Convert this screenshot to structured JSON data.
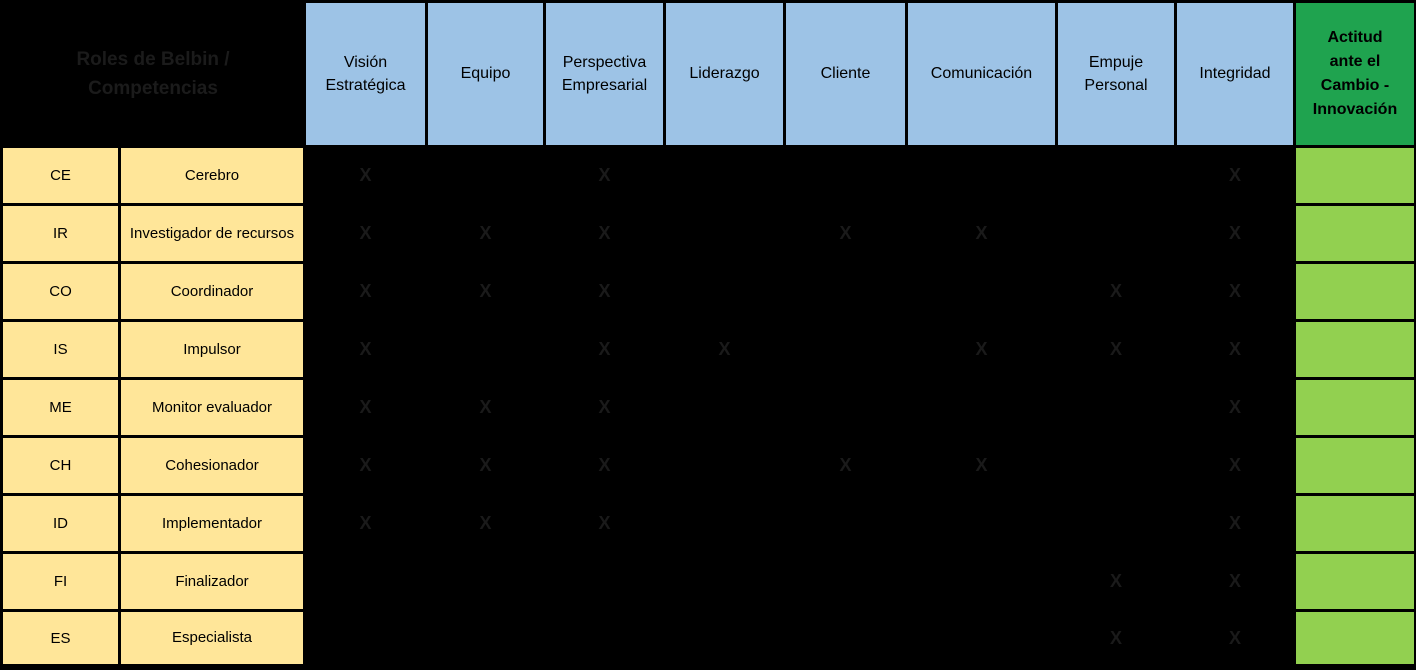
{
  "table": {
    "title": "Roles de Belbin / Competencias",
    "mark_symbol": "X",
    "columns": [
      {
        "label": "Visión Estratégica",
        "style": "blue"
      },
      {
        "label": "Equipo",
        "style": "blue"
      },
      {
        "label": "Perspectiva Empresarial",
        "style": "blue"
      },
      {
        "label": "Liderazgo",
        "style": "blue"
      },
      {
        "label": "Cliente",
        "style": "blue"
      },
      {
        "label": "Comunicación",
        "style": "blue"
      },
      {
        "label": "Empuje Personal",
        "style": "blue"
      },
      {
        "label": "Integridad",
        "style": "blue"
      },
      {
        "label": "Actitud ante el Cambio - Innovación",
        "style": "green"
      }
    ],
    "rows": [
      {
        "code": "CE",
        "role": "Cerebro",
        "marks": [
          "X",
          "",
          "X",
          "",
          "",
          "",
          "",
          "X",
          ""
        ]
      },
      {
        "code": "IR",
        "role": "Investigador de recursos",
        "marks": [
          "X",
          "X",
          "X",
          "",
          "X",
          "X",
          "",
          "X",
          ""
        ]
      },
      {
        "code": "CO",
        "role": "Coordinador",
        "marks": [
          "X",
          "X",
          "X",
          "",
          "",
          "",
          "X",
          "X",
          ""
        ]
      },
      {
        "code": "IS",
        "role": "Impulsor",
        "marks": [
          "X",
          "",
          "X",
          "X",
          "",
          "X",
          "X",
          "X",
          ""
        ]
      },
      {
        "code": "ME",
        "role": "Monitor evaluador",
        "marks": [
          "X",
          "X",
          "X",
          "",
          "",
          "",
          "",
          "X",
          ""
        ]
      },
      {
        "code": "CH",
        "role": "Cohesionador",
        "marks": [
          "X",
          "X",
          "X",
          "",
          "X",
          "X",
          "",
          "X",
          ""
        ]
      },
      {
        "code": "ID",
        "role": "Implementador",
        "marks": [
          "X",
          "X",
          "X",
          "",
          "",
          "",
          "",
          "X",
          ""
        ]
      },
      {
        "code": "FI",
        "role": "Finalizador",
        "marks": [
          "",
          "",
          "",
          "",
          "",
          "",
          "X",
          "X",
          ""
        ]
      },
      {
        "code": "ES",
        "role": "Especialista",
        "marks": [
          "",
          "",
          "",
          "",
          "",
          "",
          "X",
          "X",
          ""
        ]
      }
    ],
    "colors": {
      "column_header_blue": "#9DC3E6",
      "highlight_header_green": "#1FA34F",
      "highlight_cell_green": "#92D050",
      "role_label_yellow": "#FFE699",
      "matrix_background": "#000000",
      "mark_gray": "#1A1A1A"
    }
  }
}
